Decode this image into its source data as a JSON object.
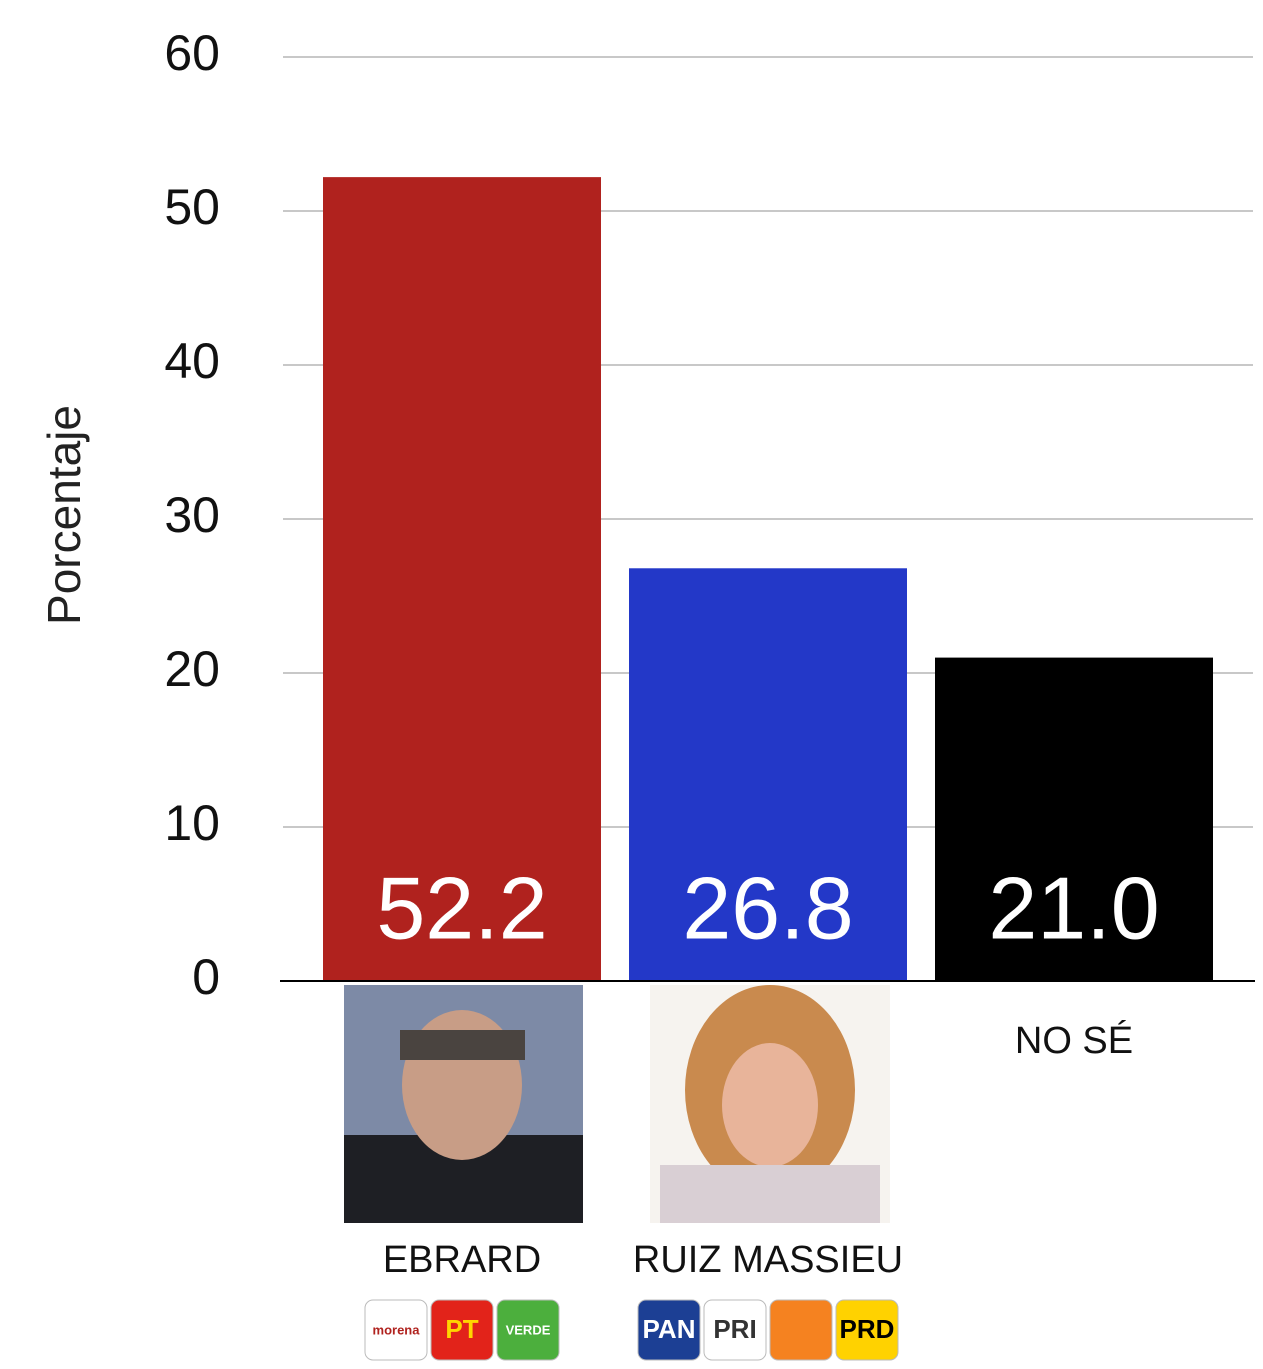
{
  "chart_data": {
    "type": "bar",
    "y_label": "Porcentaje",
    "categories": [
      "EBRARD",
      "RUIZ MASSIEU",
      "NO SÉ"
    ],
    "values": [
      52.2,
      26.8,
      21.0
    ],
    "value_labels": [
      "52.2",
      "26.8",
      "21.0"
    ],
    "colors": [
      "#b0221e",
      "#2338c8",
      "#000000"
    ],
    "ylim": [
      0,
      60
    ],
    "yticks": [
      0,
      10,
      20,
      30,
      40,
      50,
      60
    ],
    "grid": true,
    "logos": [
      [
        {
          "label": "morena",
          "color": "#ffffff",
          "text_color": "#b0221e"
        },
        {
          "label": "PT",
          "color": "#e2231a",
          "text_color": "#ffd500"
        },
        {
          "label": "VERDE",
          "color": "#4caf3d",
          "text_color": "#ffffff"
        }
      ],
      [
        {
          "label": "PAN",
          "color": "#1c3f94",
          "text_color": "#ffffff"
        },
        {
          "label": "PRI",
          "color": "#ffffff",
          "text_color": "#333333"
        },
        {
          "color": "#f58220"
        },
        {
          "label": "PRD",
          "color": "#ffd200",
          "text_color": "#000000"
        }
      ],
      []
    ]
  }
}
